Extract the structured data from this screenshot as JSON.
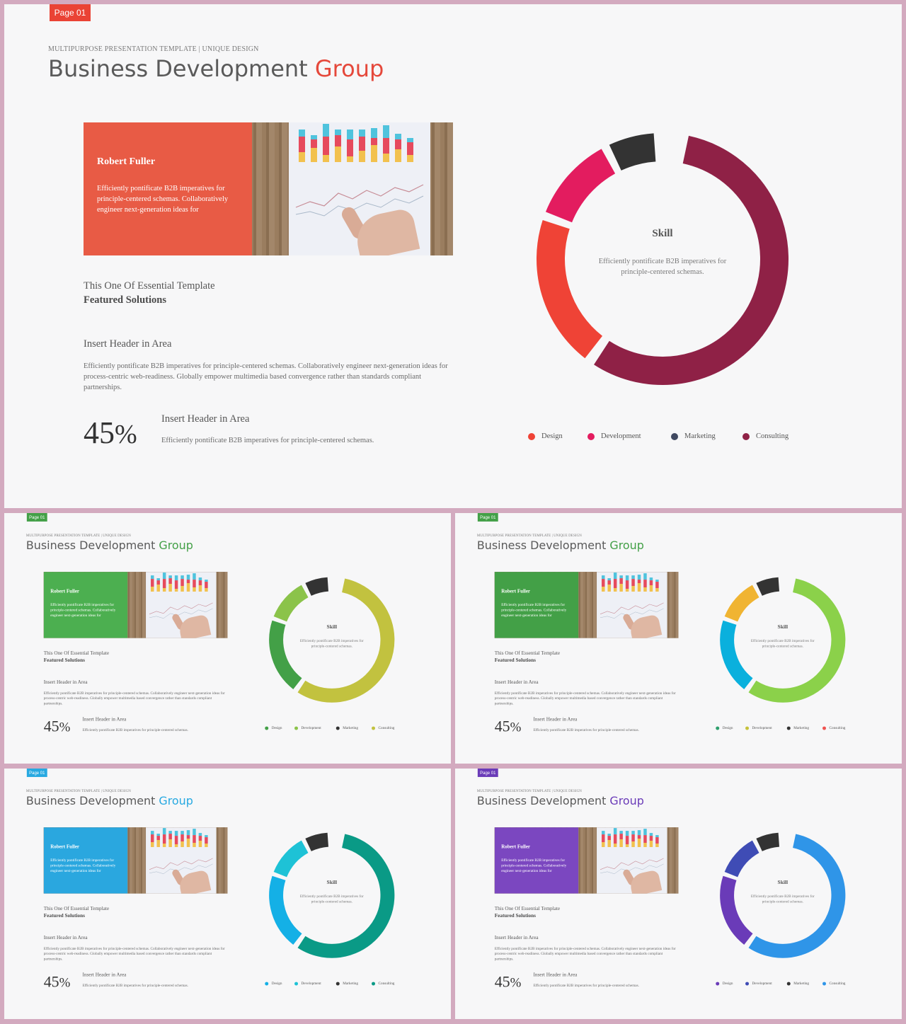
{
  "shared": {
    "page_label": "Page 01",
    "subtitle": "MULTIPURPOSE PRESENTATION TEMPLATE | UNIQUE DESIGN",
    "title_main": "Business Development",
    "title_accent": "Group",
    "card_name": "Robert Fuller",
    "card_text": "Efficiently pontificate B2B imperatives for principle-centered schemas. Collaboratively engineer next-generation ideas for",
    "section_line1": "This One Of Essential Template",
    "section_line2": "Featured Solutions",
    "insert_header_1": "Insert Header in Area",
    "body_text": "Efficiently pontificate B2B imperatives for principle-centered schemas. Collaboratively engineer next-generation ideas for process-centric web-readiness. Globally empower multimedia based convergence rather than standards compliant partnerships.",
    "percent_number": "45",
    "percent_symbol": "%",
    "insert_header_2": "Insert Header in Area",
    "body_text_2": "Efficiently pontificate B2B imperatives for principle-centered schemas.",
    "skill_title": "Skill",
    "skill_text": "Efficiently pontificate B2B imperatives for principle-centered schemas.",
    "legend_labels": [
      "Design",
      "Development",
      "Marketing",
      "Consulting"
    ]
  },
  "slides": [
    {
      "badge_color": "#ea4335",
      "accent_color": "#e5483b",
      "panel_color": "#e85b45",
      "segment_colors": [
        "#8f2146",
        "#ef4336",
        "#e31c5f",
        "#333333"
      ],
      "legend_colors": [
        "#ef4336",
        "#e31c5f",
        "#3f4860",
        "#8f2146"
      ]
    },
    {
      "badge_color": "#43a047",
      "accent_color": "#43a047",
      "panel_color": "#4caf50",
      "segment_colors": [
        "#c2c23f",
        "#43a047",
        "#8bc34a",
        "#333333"
      ],
      "legend_colors": [
        "#43a047",
        "#8bc34a",
        "#333333",
        "#c2c23f"
      ]
    },
    {
      "badge_color": "#43a047",
      "accent_color": "#43a047",
      "panel_color": "#43a047",
      "segment_colors": [
        "#8bd14a",
        "#0ab0dd",
        "#f0b432",
        "#333333"
      ],
      "legend_colors": [
        "#2e9f6d",
        "#c6c23a",
        "#333333",
        "#ef5350"
      ]
    },
    {
      "badge_color": "#27a9e1",
      "accent_color": "#27a9e1",
      "panel_color": "#2aa7df",
      "segment_colors": [
        "#0a9a86",
        "#14b0e6",
        "#1ec2d6",
        "#333333"
      ],
      "legend_colors": [
        "#14b0e6",
        "#1ec2d6",
        "#333333",
        "#0a9a86"
      ]
    },
    {
      "badge_color": "#6a3bb8",
      "accent_color": "#6a3bb8",
      "panel_color": "#7b47c0",
      "segment_colors": [
        "#2f95e8",
        "#6a3bb8",
        "#3f4cb5",
        "#333333"
      ],
      "legend_colors": [
        "#6a3bb8",
        "#3f4cb5",
        "#333333",
        "#2f95e8"
      ]
    }
  ]
}
